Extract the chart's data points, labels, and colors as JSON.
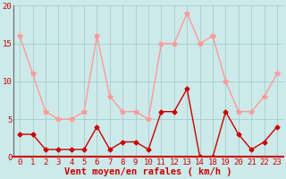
{
  "xlabel": "Vent moyen/en rafales ( km/h )",
  "background_color": "#cceaea",
  "grid_color": "#aacccc",
  "x_indices": [
    0,
    1,
    2,
    3,
    4,
    5,
    6,
    7,
    8,
    9,
    10,
    11,
    12,
    13,
    14,
    15,
    16,
    17,
    18,
    19,
    20
  ],
  "x_labels": [
    "0",
    "1",
    "2",
    "3",
    "4",
    "5",
    "6",
    "7",
    "8",
    "9",
    "10",
    "11",
    "12",
    "13",
    "14",
    "18",
    "19",
    "20",
    "21",
    "22",
    "23"
  ],
  "mean_wind": [
    3,
    3,
    1,
    1,
    1,
    1,
    4,
    1,
    2,
    2,
    1,
    6,
    6,
    9,
    0,
    0,
    6,
    3,
    1,
    2,
    4
  ],
  "gust_wind": [
    16,
    11,
    6,
    5,
    5,
    6,
    16,
    8,
    6,
    6,
    5,
    15,
    15,
    19,
    15,
    16,
    10,
    6,
    6,
    8,
    11
  ],
  "mean_color": "#cc0000",
  "gust_color": "#ff9999",
  "ylim": [
    0,
    20
  ],
  "yticks": [
    0,
    5,
    10,
    15,
    20
  ],
  "marker_size": 4,
  "line_width": 1.0,
  "tick_label_color": "#cc0000",
  "xlabel_color": "#cc0000",
  "xlabel_fontsize": 7.5,
  "tick_fontsize": 6.5,
  "fig_width": 3.2,
  "fig_height": 2.0,
  "dpi": 100
}
